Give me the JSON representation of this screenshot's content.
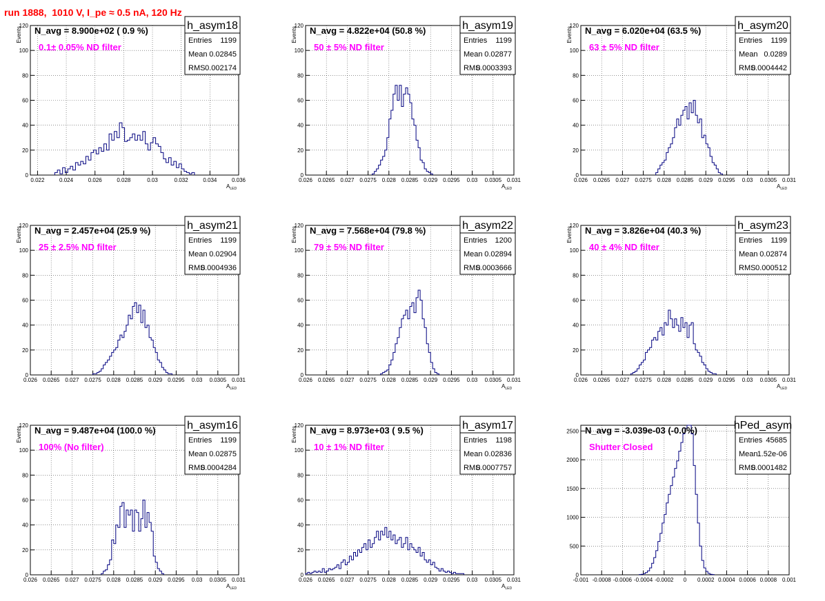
{
  "run_title": "run 1888,  1010 V, I_pe ≈ 0.5 nA, 120 Hz",
  "chart_data": [
    {
      "type": "histogram",
      "name": "h_asym18",
      "navg": "N_avg = 8.900e+02 ( 0.9 %)",
      "filter": "0.1± 0.05% ND filter",
      "stats": [
        [
          "Entries",
          "1199"
        ],
        [
          "Mean",
          "0.02845"
        ],
        [
          "RMS",
          "0.002174"
        ]
      ],
      "xlabel": "A",
      "xlabel_sub": "LED",
      "ylabel": "Events",
      "xlim": [
        0.0215,
        0.036
      ],
      "ylim": [
        0,
        120
      ],
      "xticks": [
        0.022,
        0.024,
        0.026,
        0.028,
        0.03,
        0.032,
        0.034,
        0.036
      ],
      "xtick_labels": [
        "0.022",
        "0.024",
        "0.026",
        "0.028",
        "0.03",
        "0.032",
        "0.034",
        "0.036"
      ],
      "yticks": [
        0,
        20,
        40,
        60,
        80,
        100,
        120
      ],
      "ytick_labels": [
        "0",
        "20",
        "40",
        "60",
        "80",
        "100",
        "120"
      ],
      "bin_lo": 0.0232,
      "bin_w": 0.00018,
      "values": [
        2,
        4,
        1,
        6,
        2,
        5,
        7,
        4,
        10,
        8,
        11,
        9,
        15,
        12,
        18,
        20,
        17,
        22,
        19,
        25,
        20,
        33,
        28,
        35,
        30,
        42,
        38,
        27,
        28,
        30,
        33,
        28,
        32,
        28,
        35,
        25,
        20,
        26,
        30,
        25,
        23,
        18,
        13,
        10,
        14,
        8,
        11,
        6,
        9,
        5,
        3,
        2,
        1,
        2
      ]
    },
    {
      "type": "histogram",
      "name": "h_asym19",
      "navg": "N_avg = 4.822e+04 (50.8 %)",
      "filter": "50 ± 5% ND filter",
      "stats": [
        [
          "Entries",
          "1199"
        ],
        [
          "Mean",
          "0.02877"
        ],
        [
          "RMS",
          "0.0003393"
        ]
      ],
      "xlabel": "A",
      "xlabel_sub": "LED",
      "ylabel": "Events",
      "xlim": [
        0.026,
        0.031
      ],
      "ylim": [
        0,
        120
      ],
      "xticks": [
        0.026,
        0.0265,
        0.027,
        0.0275,
        0.028,
        0.0285,
        0.029,
        0.0295,
        0.03,
        0.0305,
        0.031
      ],
      "xtick_labels": [
        "0.026",
        "0.0265",
        "0.027",
        "0.0275",
        "0.028",
        "0.0285",
        "0.029",
        "0.0295",
        "0.03",
        "0.0305",
        "0.031"
      ],
      "yticks": [
        0,
        20,
        40,
        60,
        80,
        100,
        120
      ],
      "ytick_labels": [
        "0",
        "20",
        "40",
        "60",
        "80",
        "100",
        "120"
      ],
      "bin_lo": 0.0276,
      "bin_w": 5e-05,
      "values": [
        1,
        3,
        5,
        8,
        12,
        15,
        20,
        30,
        45,
        52,
        65,
        72,
        60,
        72,
        55,
        65,
        70,
        65,
        58,
        45,
        40,
        28,
        22,
        12,
        10,
        5,
        3,
        2,
        1
      ]
    },
    {
      "type": "histogram",
      "name": "h_asym20",
      "navg": "N_avg = 6.020e+04 (63.5 %)",
      "filter": "63 ± 5% ND filter",
      "stats": [
        [
          "Entries",
          "1199"
        ],
        [
          "Mean",
          "0.0289"
        ],
        [
          "RMS",
          "0.0004442"
        ]
      ],
      "xlabel": "A",
      "xlabel_sub": "LED",
      "ylabel": "Events",
      "xlim": [
        0.026,
        0.031
      ],
      "ylim": [
        0,
        120
      ],
      "xticks": [
        0.026,
        0.0265,
        0.027,
        0.0275,
        0.028,
        0.0285,
        0.029,
        0.0295,
        0.03,
        0.0305,
        0.031
      ],
      "xtick_labels": [
        "0.026",
        "0.0265",
        "0.027",
        "0.0275",
        "0.028",
        "0.0285",
        "0.029",
        "0.0295",
        "0.03",
        "0.0305",
        "0.031"
      ],
      "yticks": [
        0,
        20,
        40,
        60,
        80,
        100,
        120
      ],
      "ytick_labels": [
        "0",
        "20",
        "40",
        "60",
        "80",
        "100",
        "120"
      ],
      "bin_lo": 0.0278,
      "bin_w": 5e-05,
      "values": [
        2,
        5,
        8,
        10,
        12,
        18,
        22,
        25,
        30,
        38,
        45,
        40,
        48,
        52,
        55,
        45,
        58,
        50,
        60,
        48,
        42,
        45,
        30,
        32,
        25,
        22,
        15,
        10,
        8,
        5,
        2,
        1
      ]
    },
    {
      "type": "histogram",
      "name": "h_asym21",
      "navg": "N_avg = 2.457e+04 (25.9 %)",
      "filter": "25 ± 2.5% ND filter",
      "stats": [
        [
          "Entries",
          "1199"
        ],
        [
          "Mean",
          "0.02904"
        ],
        [
          "RMS",
          "0.0004936"
        ]
      ],
      "xlabel": "A",
      "xlabel_sub": "LED",
      "ylabel": "Events",
      "xlim": [
        0.026,
        0.031
      ],
      "ylim": [
        0,
        120
      ],
      "xticks": [
        0.026,
        0.0265,
        0.027,
        0.0275,
        0.028,
        0.0285,
        0.029,
        0.0295,
        0.03,
        0.0305,
        0.031
      ],
      "xtick_labels": [
        "0.026",
        "0.0265",
        "0.027",
        "0.0275",
        "0.028",
        "0.0285",
        "0.029",
        "0.0295",
        "0.03",
        "0.0305",
        "0.031"
      ],
      "yticks": [
        0,
        20,
        40,
        60,
        80,
        100,
        120
      ],
      "ytick_labels": [
        "0",
        "20",
        "40",
        "60",
        "80",
        "100",
        "120"
      ],
      "bin_lo": 0.0275,
      "bin_w": 5e-05,
      "values": [
        1,
        1,
        2,
        3,
        5,
        8,
        10,
        12,
        15,
        18,
        20,
        22,
        28,
        32,
        30,
        35,
        40,
        48,
        45,
        55,
        58,
        50,
        56,
        42,
        52,
        38,
        40,
        30,
        28,
        22,
        18,
        12,
        10,
        6,
        4,
        2,
        1,
        1
      ]
    },
    {
      "type": "histogram",
      "name": "h_asym22",
      "navg": "N_avg = 7.568e+04 (79.8 %)",
      "filter": "79 ± 5% ND filter",
      "stats": [
        [
          "Entries",
          "1200"
        ],
        [
          "Mean",
          "0.02894"
        ],
        [
          "RMS",
          "0.0003666"
        ]
      ],
      "xlabel": "A",
      "xlabel_sub": "LED",
      "ylabel": "Events",
      "xlim": [
        0.026,
        0.031
      ],
      "ylim": [
        0,
        120
      ],
      "xticks": [
        0.026,
        0.0265,
        0.027,
        0.0275,
        0.028,
        0.0285,
        0.029,
        0.0295,
        0.03,
        0.0305,
        0.031
      ],
      "xtick_labels": [
        "0.026",
        "0.0265",
        "0.027",
        "0.0275",
        "0.028",
        "0.0285",
        "0.029",
        "0.0295",
        "0.03",
        "0.0305",
        "0.031"
      ],
      "yticks": [
        0,
        20,
        40,
        60,
        80,
        100,
        120
      ],
      "ytick_labels": [
        "0",
        "20",
        "40",
        "60",
        "80",
        "100",
        "120"
      ],
      "bin_lo": 0.0278,
      "bin_w": 5e-05,
      "values": [
        1,
        2,
        3,
        4,
        8,
        12,
        18,
        25,
        30,
        38,
        45,
        48,
        52,
        45,
        55,
        58,
        50,
        62,
        68,
        60,
        45,
        38,
        25,
        18,
        10,
        5,
        2,
        1
      ]
    },
    {
      "type": "histogram",
      "name": "h_asym23",
      "navg": "N_avg = 3.826e+04 (40.3 %)",
      "filter": "40 ± 4% ND filter",
      "stats": [
        [
          "Entries",
          "1199"
        ],
        [
          "Mean",
          "0.02874"
        ],
        [
          "RMS",
          "0.000512"
        ]
      ],
      "xlabel": "A",
      "xlabel_sub": "LED",
      "ylabel": "Events",
      "xlim": [
        0.026,
        0.031
      ],
      "ylim": [
        0,
        120
      ],
      "xticks": [
        0.026,
        0.0265,
        0.027,
        0.0275,
        0.028,
        0.0285,
        0.029,
        0.0295,
        0.03,
        0.0305,
        0.031
      ],
      "xtick_labels": [
        "0.026",
        "0.0265",
        "0.027",
        "0.0275",
        "0.028",
        "0.0285",
        "0.029",
        "0.0295",
        "0.03",
        "0.0305",
        "0.031"
      ],
      "yticks": [
        0,
        20,
        40,
        60,
        80,
        100,
        120
      ],
      "ytick_labels": [
        "0",
        "20",
        "40",
        "60",
        "80",
        "100",
        "120"
      ],
      "bin_lo": 0.0272,
      "bin_w": 5e-05,
      "values": [
        1,
        2,
        3,
        5,
        8,
        10,
        12,
        18,
        20,
        22,
        28,
        30,
        28,
        35,
        38,
        32,
        42,
        40,
        52,
        45,
        38,
        45,
        40,
        35,
        46,
        38,
        42,
        30,
        40,
        42,
        25,
        20,
        18,
        15,
        10,
        8,
        5,
        3,
        2,
        1,
        1
      ]
    },
    {
      "type": "histogram",
      "name": "h_asym16",
      "navg": "N_avg = 9.487e+04 (100.0 %)",
      "filter": "100% (No filter)",
      "stats": [
        [
          "Entries",
          "1199"
        ],
        [
          "Mean",
          "0.02875"
        ],
        [
          "RMS",
          "0.0004284"
        ]
      ],
      "xlabel": "A",
      "xlabel_sub": "LED",
      "ylabel": "Events",
      "xlim": [
        0.026,
        0.031
      ],
      "ylim": [
        0,
        120
      ],
      "xticks": [
        0.026,
        0.0265,
        0.027,
        0.0275,
        0.028,
        0.0285,
        0.029,
        0.0295,
        0.03,
        0.0305,
        0.031
      ],
      "xtick_labels": [
        "0.026",
        "0.0265",
        "0.027",
        "0.0275",
        "0.028",
        "0.0285",
        "0.029",
        "0.0295",
        "0.03",
        "0.0305",
        "0.031"
      ],
      "yticks": [
        0,
        20,
        40,
        60,
        80,
        100,
        120
      ],
      "ytick_labels": [
        "0",
        "20",
        "40",
        "60",
        "80",
        "100",
        "120"
      ],
      "bin_lo": 0.0277,
      "bin_w": 5e-05,
      "values": [
        1,
        3,
        4,
        8,
        12,
        28,
        25,
        40,
        38,
        55,
        58,
        38,
        52,
        48,
        52,
        35,
        52,
        50,
        35,
        45,
        60,
        38,
        50,
        42,
        35,
        15,
        10,
        5,
        3,
        1
      ]
    },
    {
      "type": "histogram",
      "name": "h_asym17",
      "navg": "N_avg = 8.973e+03 ( 9.5 %)",
      "filter": "10 ± 1% ND filter",
      "stats": [
        [
          "Entries",
          "1198"
        ],
        [
          "Mean",
          "0.02836"
        ],
        [
          "RMS",
          "0.0007757"
        ]
      ],
      "xlabel": "A",
      "xlabel_sub": "LED",
      "ylabel": "Events",
      "xlim": [
        0.026,
        0.031
      ],
      "ylim": [
        0,
        120
      ],
      "xticks": [
        0.026,
        0.0265,
        0.027,
        0.0275,
        0.028,
        0.0285,
        0.029,
        0.0295,
        0.03,
        0.0305,
        0.031
      ],
      "xtick_labels": [
        "0.026",
        "0.0265",
        "0.027",
        "0.0275",
        "0.028",
        "0.0285",
        "0.029",
        "0.0295",
        "0.03",
        "0.0305",
        "0.031"
      ],
      "yticks": [
        0,
        20,
        40,
        60,
        80,
        100,
        120
      ],
      "ytick_labels": [
        "0",
        "20",
        "40",
        "60",
        "80",
        "100",
        "120"
      ],
      "bin_lo": 0.026,
      "bin_w": 5e-05,
      "values": [
        1,
        2,
        1,
        2,
        3,
        2,
        3,
        2,
        5,
        2,
        3,
        5,
        4,
        5,
        6,
        8,
        5,
        10,
        12,
        8,
        10,
        15,
        12,
        18,
        15,
        20,
        18,
        22,
        25,
        20,
        28,
        22,
        25,
        30,
        35,
        28,
        35,
        32,
        38,
        30,
        35,
        28,
        32,
        25,
        28,
        30,
        22,
        25,
        30,
        20,
        25,
        22,
        20,
        18,
        22,
        15,
        18,
        12,
        10,
        12,
        8,
        10,
        6,
        5,
        3,
        5,
        3,
        2,
        3,
        2,
        1,
        2,
        1,
        1,
        1,
        1
      ]
    },
    {
      "type": "histogram",
      "name": "hPed_asym",
      "navg": "N_avg = -3.039e-03 (-0.0%)",
      "filter": "Shutter Closed",
      "stats": [
        [
          "Entries",
          "45685"
        ],
        [
          "Mean",
          "1.52e-06"
        ],
        [
          "RMS",
          "0.0001482"
        ]
      ],
      "xlabel": "",
      "xlabel_sub": "",
      "ylabel": "",
      "xlim": [
        -0.001,
        0.001
      ],
      "ylim": [
        0,
        2600
      ],
      "xticks": [
        -0.001,
        -0.0008,
        -0.0006,
        -0.0004,
        -0.0002,
        0,
        0.0002,
        0.0004,
        0.0006,
        0.0008,
        0.001
      ],
      "xtick_labels": [
        "-0.001",
        "-0.0008",
        "-0.0006",
        "-0.0004",
        "-0.0002",
        "0",
        "0.0002",
        "0.0004",
        "0.0006",
        "0.0008",
        "0.001"
      ],
      "yticks": [
        0,
        500,
        1000,
        1500,
        2000,
        2500
      ],
      "ytick_labels": [
        "0",
        "500",
        "1000",
        "1500",
        "2000",
        "2500"
      ],
      "bin_lo": -0.00044,
      "bin_w": 2e-05,
      "values": [
        5,
        10,
        20,
        40,
        70,
        120,
        200,
        300,
        420,
        580,
        720,
        900,
        1050,
        1250,
        1400,
        1550,
        1700,
        1850,
        1980,
        2150,
        2300,
        2450,
        2550,
        2600,
        2600,
        2450,
        1900,
        1400,
        900,
        500,
        250,
        120,
        60,
        25,
        10,
        5
      ]
    }
  ]
}
